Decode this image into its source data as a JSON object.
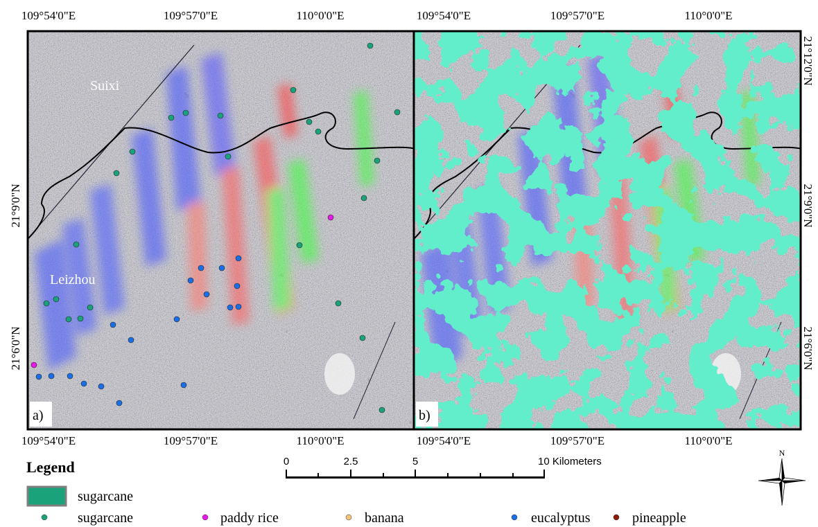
{
  "panels": [
    {
      "label": "a)",
      "places": [
        "Suixi",
        "Leizhou"
      ],
      "top_labels": [
        "109°54'0\"E",
        "109°57'0\"E",
        "110°0'0\"E"
      ],
      "bottom_labels": [
        "109°54'0\"E",
        "109°57'0\"E",
        "110°0'0\"E"
      ],
      "side_labels": [
        "21°9'0\"N",
        "21°6'0\"N"
      ]
    },
    {
      "label": "b)",
      "top_labels": [
        "109°54'0\"E",
        "109°57'0\"E",
        "110°0'0\"E"
      ],
      "bottom_labels": [
        "109°54'0\"E",
        "109°57'0\"E",
        "110°0'0\"E"
      ],
      "side_labels": [
        "21°12'0\"N",
        "21°9'0\"N",
        "21°6'0\"N"
      ]
    }
  ],
  "scale_bar": {
    "labels": [
      "0",
      "2.5",
      "5",
      "10 Kilometers"
    ]
  },
  "north_label": "N",
  "legend": {
    "title": "Legend",
    "area_entry": "sugarcane",
    "point_entries": [
      "sugarcane",
      "paddy rice",
      "banana",
      "eucalyptus",
      "pineapple"
    ]
  }
}
